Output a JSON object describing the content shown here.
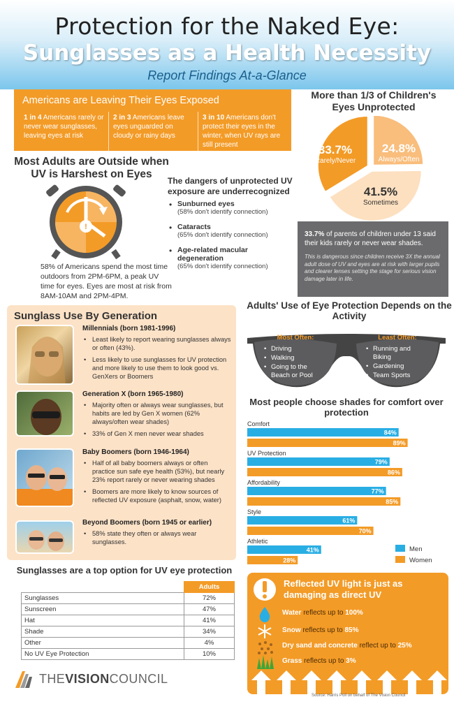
{
  "header": {
    "title1": "Protection for the Naked Eye:",
    "title2": "Sunglasses as a Health Necessity",
    "subtitle": "Report Findings At-a-Glance"
  },
  "exposed": {
    "title": "Americans are Leaving Their Eyes Exposed",
    "items": [
      {
        "bold": "1 in 4",
        "text": " Americans rarely or never wear sunglasses, leaving eyes at risk"
      },
      {
        "bold": "2 in 3",
        "text": " Americans leave eyes unguarded on cloudy or rainy days"
      },
      {
        "bold": "3 in 10",
        "text": " Americans don't protect their eyes in the winter, when UV rays are still present"
      }
    ]
  },
  "children": {
    "title": "More than 1/3 of Children's Eyes Unprotected",
    "slices": [
      {
        "pct": "33.7%",
        "label": "Rarely/Never",
        "value": 33.7,
        "color": "#f39b27"
      },
      {
        "pct": "24.8%",
        "label": "Always/Often",
        "value": 24.8,
        "color": "#f9bd7c"
      },
      {
        "pct": "41.5%",
        "label": "Sometimes",
        "value": 41.5,
        "color": "#fde0c0"
      }
    ],
    "note_bold": "33.7%",
    "note_text": " of parents of children under 13 said their kids rarely or never wear shades.",
    "note_small": "This is dangerous since children receive 3X the annual adult dose of UV and eyes are at risk with larger pupils and clearer lenses setting the stage for serious vision damage later in life."
  },
  "outside": {
    "title": "Most Adults are Outside when UV is Harshest on Eyes",
    "text": "58% of Americans spend the most time outdoors from 2PM-6PM, a peak UV time for eyes. Eyes are most at risk from 8AM-10AM and 2PM-4PM."
  },
  "dangers": {
    "title": "The dangers of unprotected UV exposure are underrecognized",
    "items": [
      {
        "head": "Sunburned eyes",
        "sub": "(58% don't identify connection)"
      },
      {
        "head": "Cataracts",
        "sub": "(65% don't identify connection)"
      },
      {
        "head": "Age-related macular degeneration",
        "sub": "(65% don't identify connection)"
      }
    ]
  },
  "generation": {
    "title": "Sunglass Use By Generation",
    "groups": [
      {
        "head": "Millennials (born 1981-1996)",
        "points": [
          "Least likely to report wearing sunglasses always or often (43%).",
          "Less likely to use sunglasses for UV protection and more likely to use them to look good vs. GenXers or Boomers"
        ]
      },
      {
        "head": "Generation X (born 1965-1980)",
        "points": [
          "Majority often or always wear sunglasses, but habits are led by Gen X women (62% always/often wear shades)",
          "33% of Gen X men never wear shades"
        ]
      },
      {
        "head": "Baby Boomers (born 1946-1964)",
        "points": [
          "Half of all baby boomers always or often practice sun safe eye health (53%), but nearly 23% report rarely or never wearing shades",
          "Boomers are more likely to know sources of reflected UV exposure (asphalt, snow, water)"
        ]
      },
      {
        "head": "Beyond Boomers (born 1945 or earlier)",
        "points": [
          "58% state they often or always wear sunglasses."
        ]
      }
    ]
  },
  "adults": {
    "title": "Adults' Use of Eye Protection Depends on the Activity",
    "most_head": "Most Often:",
    "most": [
      "Driving",
      "Walking",
      "Going to the Beach or Pool"
    ],
    "least_head": "Least Often:",
    "least": [
      "Running and Biking",
      "Gardening",
      "Team Sports"
    ]
  },
  "comfort_title": "Most people choose shades for comfort over protection",
  "chart_data": {
    "type": "bar",
    "orientation": "horizontal",
    "categories": [
      "Comfort",
      "UV Protection",
      "Affordability",
      "Style",
      "Athletic"
    ],
    "series": [
      {
        "name": "Men",
        "values": [
          84,
          79,
          77,
          61,
          41
        ],
        "labels": [
          "84%",
          "79%",
          "77%",
          "61%",
          "41%"
        ],
        "color": "#29aee4"
      },
      {
        "name": "Women",
        "values": [
          89,
          86,
          85,
          70,
          28
        ],
        "labels": [
          "89%",
          "86%",
          "85%",
          "70%",
          "28%"
        ],
        "color": "#f39b27"
      }
    ],
    "xlim": [
      0,
      100
    ],
    "legend_position": "bottom-right"
  },
  "table": {
    "title": "Sunglasses are a top option for UV eye protection",
    "header": "Adults",
    "rows": [
      {
        "label": "Sunglasses",
        "value": "72%"
      },
      {
        "label": "Sunscreen",
        "value": "47%"
      },
      {
        "label": "Hat",
        "value": "41%"
      },
      {
        "label": "Shade",
        "value": "34%"
      },
      {
        "label": "Other",
        "value": "4%"
      },
      {
        "label": "No UV Eye Protection",
        "value": "10%"
      }
    ]
  },
  "uv": {
    "title": "Reflected UV light is just as damaging as direct UV",
    "rows": [
      {
        "icon": "water-drop-icon",
        "name": "Water",
        "mid": " reflects up to ",
        "val": "100%"
      },
      {
        "icon": "snowflake-icon",
        "name": "Snow",
        "mid": " reflects up to ",
        "val": "85%"
      },
      {
        "icon": "sand-icon",
        "name": "Dry sand and concrete",
        "mid": " reflect up to ",
        "val": "25%"
      },
      {
        "icon": "grass-icon",
        "name": "Grass",
        "mid": " reflects up to ",
        "val": "3%"
      }
    ]
  },
  "logo": {
    "pre": "THE",
    "bold": "VISION",
    "post": "COUNCIL"
  },
  "source": "Source: Harris Poll on behalf of The Vision Council"
}
